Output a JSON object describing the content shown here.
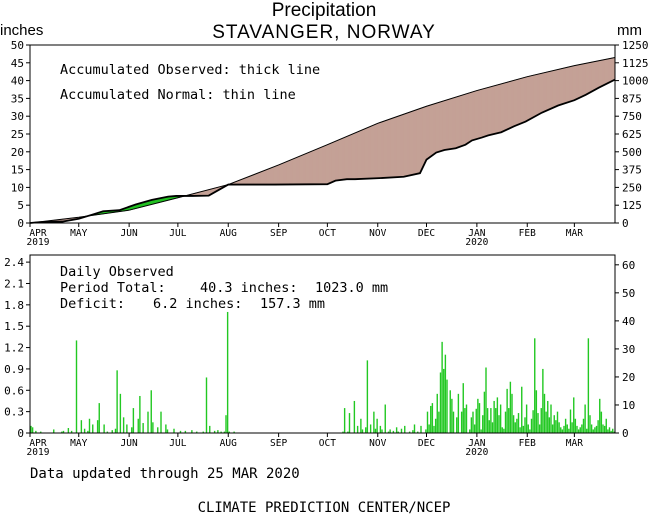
{
  "header": {
    "title": "Precipitation",
    "station": "STAVANGER, NORWAY",
    "left_unit": "inches",
    "right_unit": "mm"
  },
  "footer": {
    "updated": "Data updated through 25 MAR 2020",
    "credit": "CLIMATE PREDICTION CENTER/NCEP"
  },
  "chart_data": [
    {
      "type": "area",
      "name": "accumulated",
      "notes": [
        "Accumulated Observed: thick line",
        "Accumulated Normal: thin line"
      ],
      "x_tick_labels": [
        "APR",
        "MAY",
        "JUN",
        "JUL",
        "AUG",
        "SEP",
        "OCT",
        "NOV",
        "DEC",
        "JAN",
        "FEB",
        "MAR"
      ],
      "x_year_labels": {
        "APR": "2019",
        "JAN": "2020"
      },
      "month_starts": [
        0,
        30,
        61,
        91,
        122,
        153,
        183,
        214,
        244,
        275,
        306,
        335
      ],
      "x_range": [
        0,
        360
      ],
      "y_left_ticks": [
        "0",
        "5",
        "10",
        "15",
        "20",
        "25",
        "30",
        "35",
        "40",
        "45",
        "50"
      ],
      "y_right_ticks": [
        "0",
        "125",
        "250",
        "375",
        "500",
        "625",
        "750",
        "875",
        "1000",
        "1125",
        "1250"
      ],
      "ylim_inches": [
        0,
        50
      ],
      "surplus_color": "#22c022",
      "deficit_color": "#c4a196",
      "observed": {
        "x": [
          0,
          5,
          10,
          20,
          30,
          38,
          45,
          55,
          65,
          75,
          85,
          90,
          100,
          110,
          122,
          150,
          183,
          188,
          195,
          200,
          215,
          230,
          240,
          244,
          250,
          255,
          262,
          268,
          272,
          278,
          282,
          290,
          298,
          305,
          315,
          325,
          335,
          342,
          350,
          360
        ],
        "y": [
          0,
          0.2,
          0.3,
          0.4,
          1.2,
          2.3,
          3.3,
          3.6,
          5.2,
          6.5,
          7.4,
          7.6,
          7.6,
          7.7,
          10.8,
          10.8,
          10.9,
          11.9,
          12.3,
          12.3,
          12.6,
          13.0,
          14.0,
          17.8,
          19.8,
          20.5,
          21.0,
          22.0,
          23.2,
          24.0,
          24.6,
          25.5,
          27.2,
          28.5,
          31.0,
          33.0,
          34.5,
          36.0,
          38.0,
          40.3
        ]
      },
      "normal": {
        "x": [
          0,
          30,
          61,
          91,
          122,
          153,
          183,
          214,
          244,
          275,
          306,
          335,
          360
        ],
        "y": [
          0,
          1.6,
          3.6,
          7.1,
          10.8,
          16.3,
          22.0,
          28.0,
          32.8,
          37.2,
          41.1,
          44.2,
          46.5
        ]
      }
    },
    {
      "type": "bar",
      "name": "daily",
      "notes": [
        "Daily Observed"
      ],
      "stats": [
        {
          "label": "Period Total:",
          "inches": "40.3 inches:",
          "mm": "1023.0 mm"
        },
        {
          "label": "Deficit:",
          "inches": "6.2 inches:",
          "mm": "157.3 mm"
        }
      ],
      "y_left_ticks": [
        "0",
        "0.3",
        "0.6",
        "0.9",
        "1.2",
        "1.5",
        "1.8",
        "2.1",
        "2.4"
      ],
      "y_right_ticks": [
        "0",
        "10",
        "20",
        "30",
        "40",
        "50",
        "60"
      ],
      "ylim_inches": [
        0,
        2.5
      ],
      "bar_color": "#22c822",
      "days": [
        0,
        1,
        3,
        6,
        14,
        19,
        20,
        23,
        25,
        28,
        31,
        33,
        35,
        36,
        38,
        41,
        42,
        45,
        47,
        50,
        52,
        53,
        55,
        57,
        59,
        62,
        63,
        66,
        67,
        69,
        72,
        74,
        75,
        78,
        80,
        83,
        84,
        88,
        92,
        95,
        99,
        102,
        106,
        108,
        110,
        113,
        115,
        117,
        119,
        120,
        121,
        122,
        125,
        192,
        193,
        195,
        196,
        199,
        201,
        203,
        204,
        206,
        207,
        209,
        211,
        212,
        213,
        215,
        216,
        218,
        220,
        221,
        223,
        225,
        226,
        228,
        230,
        233,
        235,
        236,
        238,
        240,
        243,
        244,
        245,
        246,
        247,
        248,
        249,
        250,
        251,
        252,
        253,
        254,
        255,
        256,
        258,
        259,
        260,
        262,
        263,
        265,
        266,
        267,
        268,
        270,
        271,
        272,
        273,
        274,
        275,
        276,
        277,
        278,
        279,
        280,
        281,
        282,
        283,
        284,
        285,
        286,
        287,
        288,
        289,
        290,
        291,
        292,
        293,
        294,
        295,
        296,
        297,
        298,
        299,
        300,
        301,
        302,
        303,
        304,
        305,
        306,
        307,
        308,
        309,
        310,
        311,
        312,
        313,
        314,
        315,
        316,
        317,
        318,
        319,
        320,
        321,
        322,
        323,
        324,
        325,
        326,
        327,
        328,
        329,
        330,
        331,
        332,
        333,
        334,
        335,
        336,
        337,
        338,
        339,
        340,
        341,
        342,
        343,
        344,
        345,
        346,
        347,
        348,
        349,
        350,
        351,
        352,
        353,
        354,
        355,
        356,
        357,
        358,
        359
      ],
      "inches": [
        0.1,
        0.08,
        0.03,
        0.02,
        0.05,
        0.02,
        0.03,
        0.07,
        0.03,
        1.3,
        0.18,
        0.06,
        0.03,
        0.2,
        0.12,
        0.18,
        0.42,
        0.12,
        0.02,
        0.04,
        0.06,
        0.88,
        0.55,
        0.22,
        0.12,
        0.08,
        0.35,
        0.2,
        0.52,
        0.14,
        0.3,
        0.6,
        0.15,
        0.08,
        0.3,
        0.12,
        0.05,
        0.06,
        0.03,
        0.03,
        0.04,
        0.02,
        0.02,
        0.78,
        0.1,
        0.03,
        0.04,
        0.02,
        0.02,
        0.25,
        1.7,
        0.02,
        0.02,
        0.02,
        0.35,
        0.02,
        0.28,
        0.45,
        0.1,
        0.2,
        0.05,
        0.08,
        1.02,
        0.12,
        0.3,
        0.06,
        0.2,
        0.1,
        0.05,
        0.4,
        0.02,
        0.05,
        0.03,
        0.08,
        0.02,
        0.06,
        0.1,
        0.02,
        0.04,
        0.12,
        0.02,
        0.1,
        0.05,
        0.3,
        0.12,
        0.38,
        0.42,
        0.1,
        0.2,
        0.55,
        0.3,
        0.85,
        1.28,
        0.9,
        1.1,
        0.75,
        0.6,
        0.48,
        0.3,
        0.22,
        0.55,
        0.3,
        0.7,
        0.35,
        0.4,
        0.05,
        0.22,
        0.3,
        0.12,
        0.34,
        0.48,
        0.42,
        0.05,
        0.25,
        0.58,
        0.92,
        0.35,
        0.18,
        0.35,
        0.15,
        0.45,
        0.35,
        0.5,
        0.25,
        0.4,
        0.08,
        0.06,
        0.3,
        0.62,
        0.35,
        0.72,
        0.55,
        0.25,
        0.15,
        0.2,
        0.28,
        0.08,
        0.65,
        0.1,
        0.22,
        0.4,
        0.12,
        0.05,
        0.2,
        0.32,
        1.33,
        0.6,
        0.28,
        0.12,
        0.35,
        0.9,
        0.55,
        0.3,
        0.45,
        0.22,
        0.4,
        0.12,
        0.25,
        0.18,
        0.3,
        0.15,
        0.08,
        0.05,
        0.1,
        0.2,
        0.12,
        0.06,
        0.33,
        0.15,
        0.5,
        0.2,
        0.1,
        0.05,
        0.08,
        0.12,
        0.2,
        0.4,
        0.06,
        1.33,
        0.25,
        0.12,
        0.05,
        0.08,
        0.1,
        0.18,
        0.48,
        0.3,
        0.12,
        0.1,
        0.2,
        0.05,
        0.08,
        0.03,
        0.06,
        0.02
      ]
    }
  ]
}
